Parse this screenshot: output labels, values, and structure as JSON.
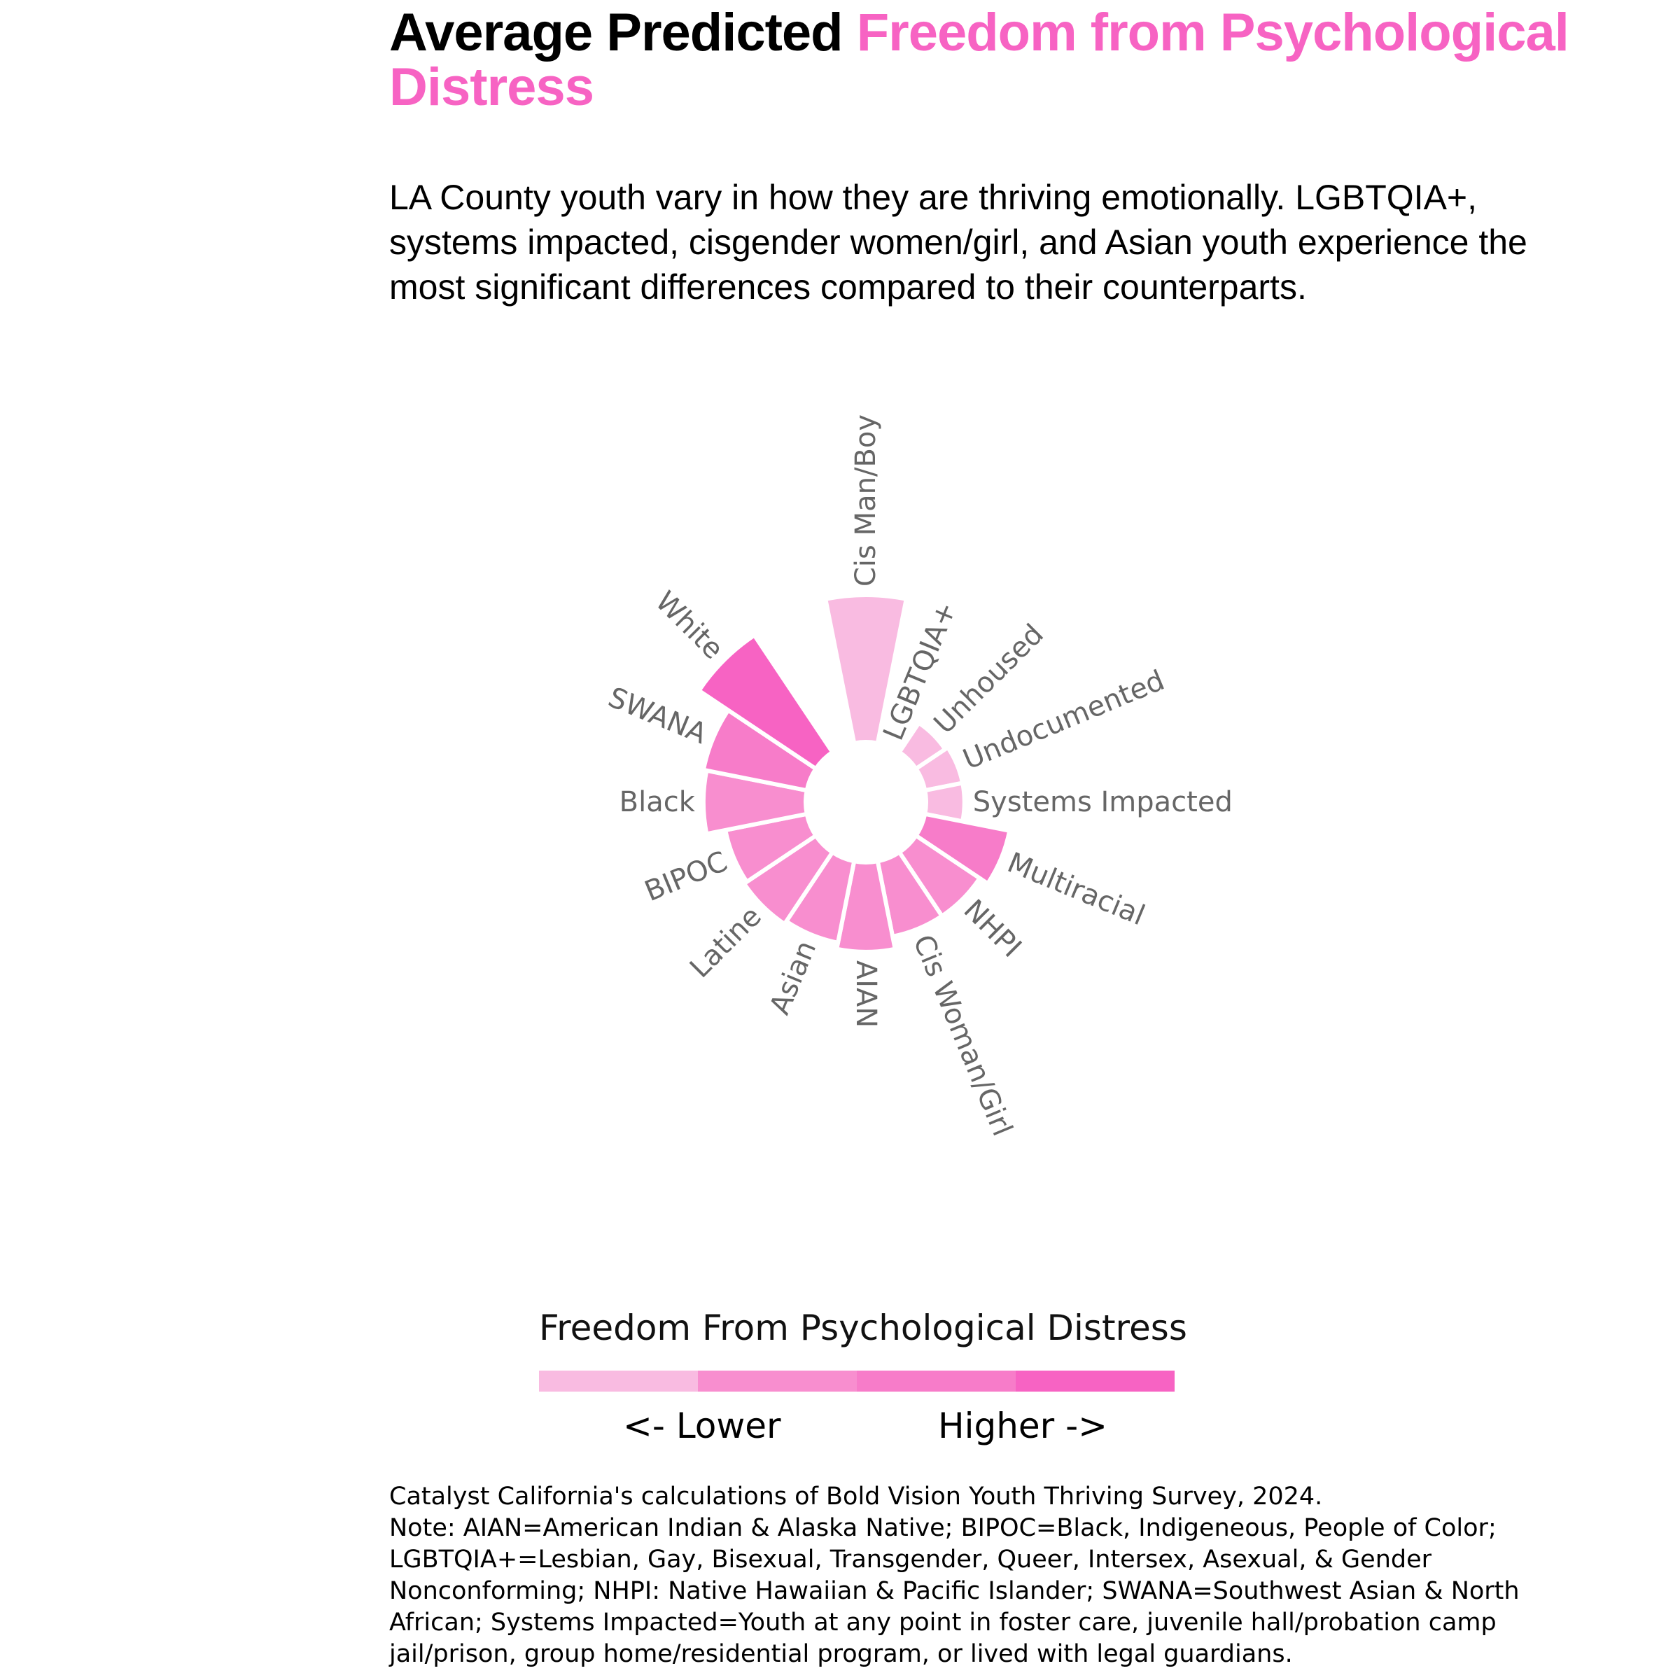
{
  "header": {
    "title_plain": "Average Predicted",
    "title_accent_1": "Freedom  from Psychological",
    "title_accent_2": "Distress",
    "subtitle": "LA County youth vary in how they are thriving emotionally. LGBTQIA+, systems impacted, cisgender women/girl, and Asian youth experience the most significant differences compared to their counterparts."
  },
  "colors": {
    "accent": "#F763C3",
    "bucket_1": "#F9BBE1",
    "bucket_2": "#F88ECF",
    "bucket_3": "#F77CC9",
    "bucket_4": "#F763C3",
    "label_gray": "#666666"
  },
  "chart_data": {
    "type": "bar",
    "layout": "radial",
    "title": "",
    "categories": [
      "Cis Man/Boy",
      "LGBTQIA+",
      "Unhoused",
      "Undocumented",
      "Systems Impacted",
      "Multiracial",
      "NHPI",
      "Cis Woman/Girl",
      "AIAN",
      "Asian",
      "Latine",
      "BIPOC",
      "Black",
      "SWANA",
      "White"
    ],
    "series": [
      {
        "values": [
          2.3,
          0.0,
          0.55,
          0.6,
          0.6,
          1.35,
          1.2,
          1.2,
          1.4,
          1.3,
          1.35,
          1.3,
          1.6,
          1.65,
          2.2
        ]
      }
    ],
    "buckets": [
      1,
      1,
      1,
      1,
      1,
      3,
      2,
      2,
      2,
      2,
      2,
      2,
      2,
      3,
      4
    ],
    "ylim": [
      0,
      2.3
    ],
    "grid": false,
    "legend": {
      "title": "Freedom From Psychological Distress",
      "low_label": "<- Lower",
      "high_label": "Higher ->",
      "position": "bottom"
    }
  },
  "footnote": {
    "line1": "Catalyst California's calculations of Bold Vision Youth Thriving Survey, 2024.",
    "line2": "Note: AIAN=American Indian & Alaska Native; BIPOC=Black, Indigeneous, People of Color;",
    "line3": "LGBTQIA+=Lesbian, Gay, Bisexual, Transgender, Queer, Intersex, Asexual, & Gender",
    "line4": "Nonconforming; NHPI: Native Hawaiian & Pacific Islander; SWANA=Southwest Asian & North",
    "line5": "African; Systems Impacted=Youth at any point in foster care, juvenile hall/probation camp",
    "line6": "jail/prison, group home/residential program, or lived with legal guardians."
  }
}
